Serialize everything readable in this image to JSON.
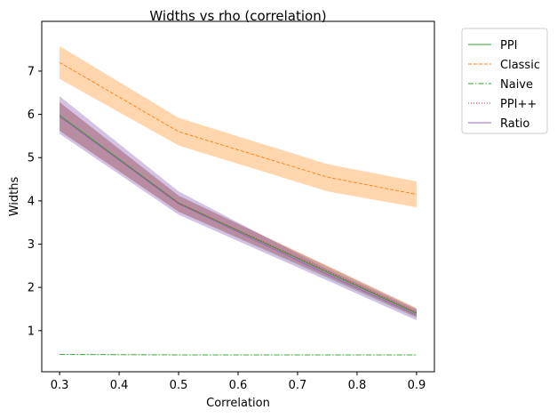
{
  "chart_data": {
    "type": "line",
    "title": "Widths vs rho (correlation)",
    "xlabel": "Correlation",
    "ylabel": "Widths",
    "xlim": [
      0.27,
      0.93
    ],
    "ylim": [
      0.05,
      8.15
    ],
    "xticks": [
      "0.3",
      "0.4",
      "0.5",
      "0.6",
      "0.7",
      "0.8",
      "0.9"
    ],
    "yticks": [
      "1",
      "2",
      "3",
      "4",
      "5",
      "6",
      "7"
    ],
    "grid": false,
    "legend_position": "outside-top-right",
    "x": [
      0.3,
      0.5,
      0.75,
      0.9
    ],
    "series": [
      {
        "name": "PPI",
        "color": "#2ca02c",
        "dash": "solid",
        "values": [
          5.98,
          3.95,
          2.35,
          1.4
        ],
        "band_low": [
          5.62,
          3.75,
          2.22,
          1.3
        ],
        "band_high": [
          6.28,
          4.12,
          2.48,
          1.5
        ]
      },
      {
        "name": "Classic",
        "color": "#ff7f0e",
        "dash": "dashed",
        "values": [
          7.2,
          5.6,
          4.55,
          4.15
        ],
        "band_low": [
          6.82,
          5.28,
          4.22,
          3.85
        ],
        "band_high": [
          7.58,
          5.92,
          4.85,
          4.45
        ]
      },
      {
        "name": "Naive",
        "color": "#2ca02c",
        "dash": "dashdot",
        "values": [
          0.45,
          0.44,
          0.44,
          0.44
        ],
        "band_low": [
          0.44,
          0.43,
          0.43,
          0.43
        ],
        "band_high": [
          0.46,
          0.45,
          0.45,
          0.45
        ]
      },
      {
        "name": "PPI++",
        "color": "#d62728",
        "dash": "dotted",
        "values": [
          5.95,
          3.95,
          2.38,
          1.42
        ],
        "band_low": [
          5.62,
          3.75,
          2.25,
          1.32
        ],
        "band_high": [
          6.28,
          4.12,
          2.5,
          1.52
        ]
      },
      {
        "name": "Ratio",
        "color": "#9467bd",
        "dash": "solid",
        "values": [
          5.95,
          3.93,
          2.3,
          1.36
        ],
        "band_low": [
          5.55,
          3.68,
          2.16,
          1.24
        ],
        "band_high": [
          6.42,
          4.22,
          2.42,
          1.48
        ]
      }
    ]
  }
}
